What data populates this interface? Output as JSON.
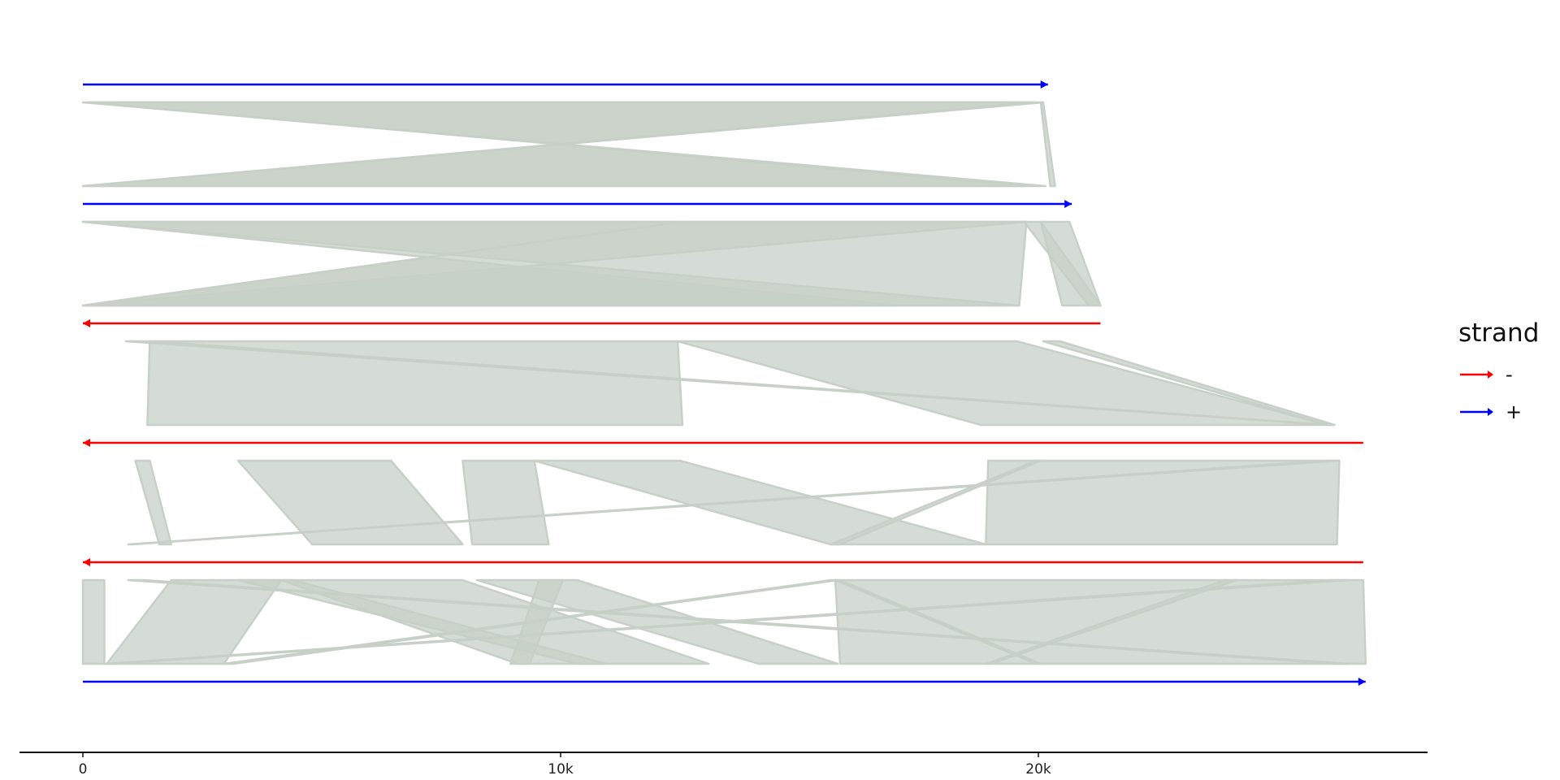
{
  "chart_data": {
    "type": "genome-synteny",
    "x_axis": {
      "ticks": [
        {
          "value": 0,
          "label": "0"
        },
        {
          "value": 10000,
          "label": "10k"
        },
        {
          "value": 20000,
          "label": "20k"
        }
      ]
    },
    "legend": {
      "title": "strand",
      "position": "right",
      "entries": [
        {
          "label": "-",
          "strand": "-",
          "color": "#ff0000"
        },
        {
          "label": "+",
          "strand": "+",
          "color": "#0000ff"
        }
      ]
    },
    "link_color": "#c7d0c7",
    "genomes": [
      {
        "start": 0,
        "end": 20200,
        "strand": "+"
      },
      {
        "start": 0,
        "end": 20700,
        "strand": "+"
      },
      {
        "start": 0,
        "end": 21300,
        "strand": "-"
      },
      {
        "start": 0,
        "end": 26800,
        "strand": "-"
      },
      {
        "start": 0,
        "end": 26800,
        "strand": "-"
      },
      {
        "start": 0,
        "end": 26850,
        "strand": "+"
      }
    ],
    "links": [
      {
        "between": [
          0,
          1
        ],
        "top": [
          0,
          20100
        ],
        "bottom": [
          20150,
          0
        ]
      },
      {
        "between": [
          0,
          1
        ],
        "top": [
          19900,
          100
        ],
        "bottom": [
          0,
          19750
        ]
      },
      {
        "between": [
          0,
          1
        ],
        "top": [
          20050,
          20100
        ],
        "bottom": [
          20250,
          20350
        ]
      },
      {
        "between": [
          1,
          2
        ],
        "top": [
          0,
          12550
        ],
        "bottom": [
          17050,
          0
        ]
      },
      {
        "between": [
          1,
          2
        ],
        "top": [
          0,
          19750
        ],
        "bottom": [
          19600,
          0
        ]
      },
      {
        "between": [
          1,
          2
        ],
        "top": [
          19700,
          20050
        ],
        "bottom": [
          21050,
          21300
        ]
      },
      {
        "between": [
          1,
          2
        ],
        "top": [
          12550,
          19750
        ],
        "bottom": [
          0,
          19600
        ]
      },
      {
        "between": [
          1,
          2
        ],
        "top": [
          20050,
          20650
        ],
        "bottom": [
          20500,
          21300
        ]
      },
      {
        "between": [
          2,
          3
        ],
        "top": [
          1400,
          12450
        ],
        "bottom": [
          1350,
          12550
        ]
      },
      {
        "between": [
          2,
          3
        ],
        "top": [
          12450,
          19550
        ],
        "bottom": [
          18800,
          26050
        ]
      },
      {
        "between": [
          2,
          3
        ],
        "top": [
          900,
          1400
        ],
        "bottom": [
          26050,
          26150
        ]
      },
      {
        "between": [
          2,
          3
        ],
        "top": [
          20100,
          20450
        ],
        "bottom": [
          26050,
          26200
        ]
      },
      {
        "between": [
          3,
          4
        ],
        "top": [
          1100,
          1400
        ],
        "bottom": [
          1600,
          1850
        ]
      },
      {
        "between": [
          3,
          4
        ],
        "top": [
          3250,
          6450
        ],
        "bottom": [
          4800,
          7950
        ]
      },
      {
        "between": [
          3,
          4
        ],
        "top": [
          7950,
          9450
        ],
        "bottom": [
          8150,
          9750
        ]
      },
      {
        "between": [
          3,
          4
        ],
        "top": [
          9450,
          12500
        ],
        "bottom": [
          15650,
          18900
        ]
      },
      {
        "between": [
          3,
          4
        ],
        "top": [
          18950,
          26300
        ],
        "bottom": [
          18900,
          26250
        ]
      },
      {
        "between": [
          3,
          4
        ],
        "top": [
          26000,
          26300
        ],
        "bottom": [
          950,
          1050
        ]
      },
      {
        "between": [
          3,
          4
        ],
        "top": [
          19950,
          20050
        ],
        "bottom": [
          15650,
          15850
        ]
      },
      {
        "between": [
          4,
          5
        ],
        "top": [
          0,
          450
        ],
        "bottom": [
          0,
          450
        ]
      },
      {
        "between": [
          4,
          5
        ],
        "top": [
          1850,
          4150
        ],
        "bottom": [
          500,
          2950
        ]
      },
      {
        "between": [
          4,
          5
        ],
        "top": [
          4150,
          7950
        ],
        "bottom": [
          9100,
          13100
        ]
      },
      {
        "between": [
          4,
          5
        ],
        "top": [
          8250,
          10350
        ],
        "bottom": [
          14150,
          15800
        ]
      },
      {
        "between": [
          4,
          5
        ],
        "top": [
          15750,
          26800
        ],
        "bottom": [
          15850,
          26850
        ]
      },
      {
        "between": [
          4,
          5
        ],
        "top": [
          15650,
          15800
        ],
        "bottom": [
          2950,
          3150
        ]
      },
      {
        "between": [
          4,
          5
        ],
        "top": [
          9550,
          10050
        ],
        "bottom": [
          8950,
          9350
        ]
      },
      {
        "between": [
          4,
          5
        ],
        "top": [
          950,
          1300
        ],
        "bottom": [
          26200,
          26500
        ]
      },
      {
        "between": [
          4,
          5
        ],
        "top": [
          15750,
          15850
        ],
        "bottom": [
          19950,
          20050
        ]
      },
      {
        "between": [
          4,
          5
        ],
        "top": [
          23900,
          24150
        ],
        "bottom": [
          18900,
          19000
        ]
      },
      {
        "between": [
          4,
          5
        ],
        "top": [
          26100,
          26500
        ],
        "bottom": [
          450,
          650
        ]
      },
      {
        "between": [
          4,
          5
        ],
        "top": [
          3250,
          4400
        ],
        "bottom": [
          10350,
          10950
        ]
      }
    ]
  }
}
